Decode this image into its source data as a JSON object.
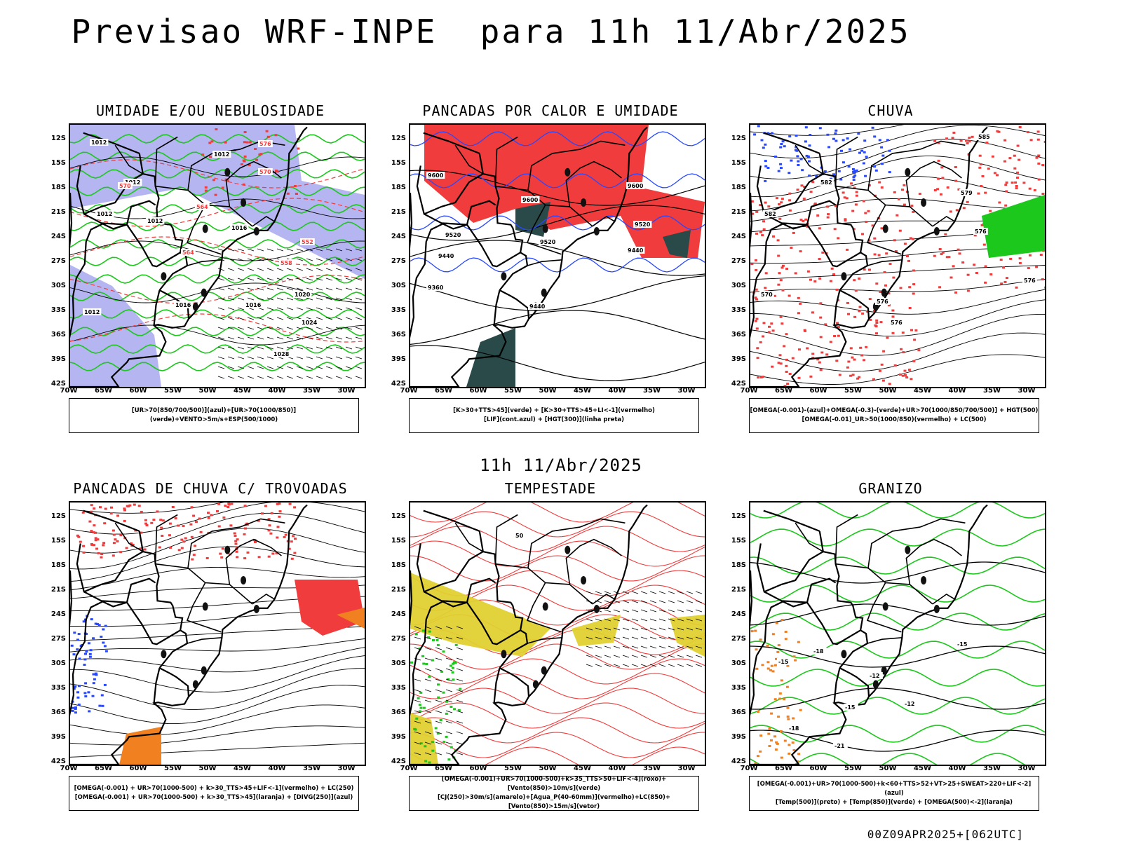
{
  "main_title": "Previsao WRF-INPE  para 11h 11/Abr/2025",
  "mid_title": "11h 11/Abr/2025",
  "footer": "00Z09APR2025+[062UTC]",
  "lat_labels": [
    "12S",
    "15S",
    "18S",
    "21S",
    "24S",
    "27S",
    "30S",
    "33S",
    "36S",
    "39S",
    "42S"
  ],
  "lon_labels": [
    "70W",
    "65W",
    "60W",
    "55W",
    "50W",
    "45W",
    "40W",
    "35W",
    "30W"
  ],
  "colors": {
    "red": "#f03c3c",
    "green": "#1cc81c",
    "blue": "#2848ff",
    "lavender": "#a8a8f0",
    "yellow": "#e0d030",
    "teal": "#2a4a4a",
    "orange": "#f08020"
  },
  "panels": [
    {
      "title": "UMIDADE E/OU NEBULOSIDADE",
      "legend": [
        "[UR>70(850/700/500)](azul)+[UR>70(1000/850)](verde)+VENTO>5m/s+ESP(500/1000)"
      ],
      "labels": [
        "1012",
        "1012",
        "1012",
        "1012",
        "1012",
        "1016",
        "1016",
        "1020",
        "1024",
        "1028",
        "1016",
        "1012",
        "576",
        "570",
        "564",
        "558",
        "552",
        "570",
        "564"
      ]
    },
    {
      "title": "PANCADAS POR CALOR E UMIDADE",
      "legend": [
        "[K>30+TTS>45](verde) + [K>30+TTS>45+LI<-1](vermelho)",
        "[LIF](cont.azul) + [HGT(300)](linha preta)"
      ],
      "labels": [
        "9600",
        "9600",
        "9600",
        "9520",
        "9520",
        "9440",
        "9440",
        "9360",
        "9440",
        "9520"
      ]
    },
    {
      "title": "CHUVA",
      "legend": [
        "[OMEGA(-0.001)-(azul)+OMEGA(-0.3)-(verde)+UR>70(1000/850/700/500)] + HGT(500)",
        "[OMEGA(-0.01)_UR>50(1000/850)(vermelho) + LC(500)"
      ],
      "labels": [
        "585",
        "582",
        "582",
        "579",
        "576",
        "576",
        "576",
        "570",
        "576"
      ]
    },
    {
      "title": "PANCADAS DE CHUVA C/ TROVOADAS",
      "legend": [
        "[OMEGA(-0.001) + UR>70(1000-500) + k>30_TTS>45+LIF<-1](vermelho) + LC(250)",
        "[OMEGA(-0.001) + UR>70(1000-500) + k>30_TTS>45](laranja) + [DIVG(250)](azul)"
      ],
      "labels": []
    },
    {
      "title": "TEMPESTADE",
      "legend": [
        "[OMEGA(-0.001)+UR>70(1000-500)+k>35_TTS>50+LIF<-4](roxo)+[Vento(850)>10m/s](verde)",
        "[CJ(250)>30m/s](amarelo)+[Agua_P(40-60mm)](vermelho)+LC(850)+[Vento(850)>15m/s](vetor)"
      ],
      "labels": [
        "50"
      ]
    },
    {
      "title": "GRANIZO",
      "legend": [
        "[OMEGA(-0.001)+UR>70(1000-500)+k<60+TTS>52+VT>25+SWEAT>220+LIF<-2](azul)",
        "[Temp(500)](preto) + [Temp(850)](verde) + [OMEGA(500)<-2](laranja)"
      ],
      "labels": [
        "-12",
        "-12",
        "-15",
        "-15",
        "-15",
        "-18",
        "-18",
        "-21"
      ]
    }
  ]
}
